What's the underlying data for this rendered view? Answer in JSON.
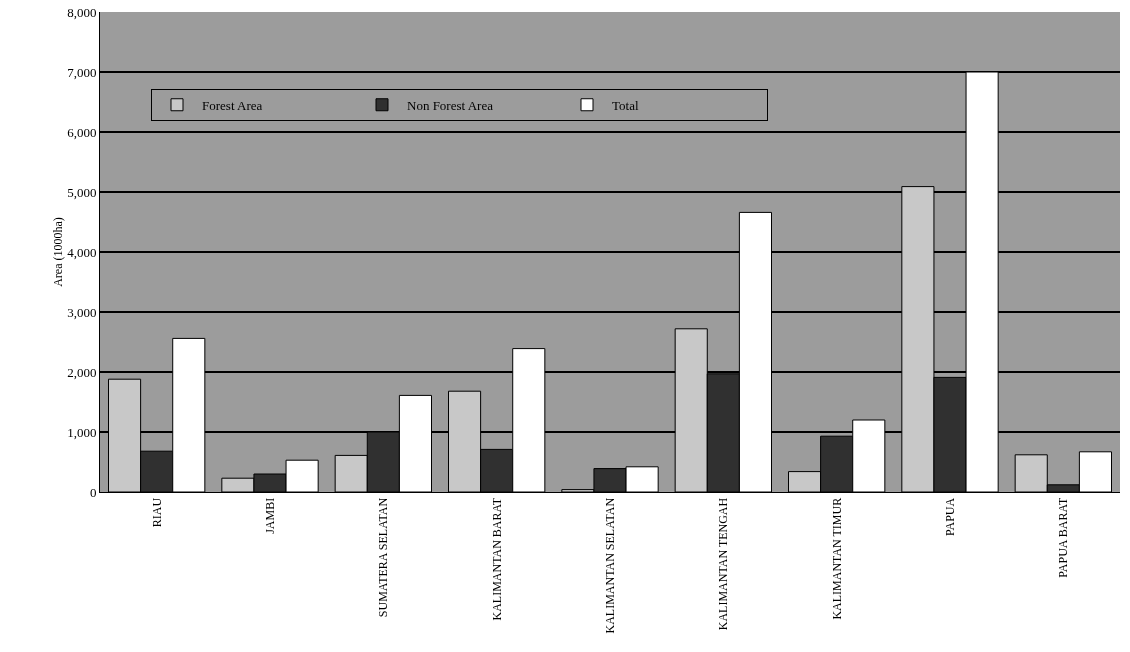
{
  "chart_data": {
    "type": "bar",
    "ylabel": "Area (1000ha)",
    "categories": [
      "RIAU",
      "JAMBI",
      "SUMATERA SELATAN",
      "KALIMANTAN BARAT",
      "KALIMANTAN SELATAN",
      "KALIMANTAN TENGAH",
      "KALIMANTAN TIMUR",
      "PAPUA",
      "PAPUA BARAT"
    ],
    "series": [
      {
        "name": "Forest Area",
        "color": "#c8c8c8",
        "values": [
          1880,
          230,
          610,
          1680,
          40,
          2720,
          340,
          5090,
          620
        ]
      },
      {
        "name": "Non Forest Area",
        "color": "#303030",
        "values": [
          680,
          300,
          1000,
          710,
          390,
          1970,
          930,
          1910,
          120
        ]
      },
      {
        "name": "Total",
        "color": "#ffffff",
        "values": [
          2560,
          530,
          1610,
          2390,
          420,
          4660,
          1200,
          7000,
          670
        ]
      }
    ],
    "ylim": [
      0,
      8000
    ],
    "yticks": [
      {
        "value": 0,
        "label": "0"
      },
      {
        "value": 1000,
        "label": "1,000"
      },
      {
        "value": 2000,
        "label": "2,000"
      },
      {
        "value": 3000,
        "label": "3,000"
      },
      {
        "value": 4000,
        "label": "4,000"
      },
      {
        "value": 5000,
        "label": "5,000"
      },
      {
        "value": 6000,
        "label": "6,000"
      },
      {
        "value": 7000,
        "label": "7,000"
      },
      {
        "value": 8000,
        "label": "8,000"
      }
    ],
    "grid": "y",
    "legend": "top left"
  }
}
